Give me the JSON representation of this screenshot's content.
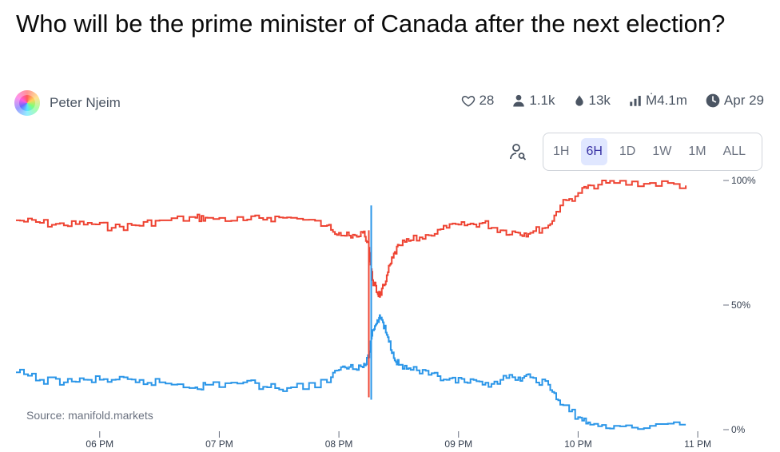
{
  "question": {
    "title": "Who will be the prime minister of Canada after the next election?"
  },
  "author": {
    "name": "Peter Njeim"
  },
  "stats": {
    "likes": "28",
    "traders": "1.1k",
    "liquidity": "13k",
    "volume": "Ṁ4.1m",
    "close_date": "Apr 29"
  },
  "time_range": {
    "options": [
      "1H",
      "6H",
      "1D",
      "1W",
      "1M",
      "ALL"
    ],
    "selected": "6H"
  },
  "source": "Source: manifold.markets",
  "colors": {
    "series_red": "#ee4332",
    "series_blue": "#2b96e8",
    "accent": "#3730a3"
  },
  "chart_data": {
    "type": "line",
    "x_ticks": [
      "06 PM",
      "07 PM",
      "08 PM",
      "09 PM",
      "10 PM",
      "11 PM"
    ],
    "y_ticks": [
      "100%",
      "50%",
      "0%"
    ],
    "ylim": [
      0,
      100
    ],
    "series": [
      {
        "color": "#ee4332",
        "values": [
          [
            17.3,
            84
          ],
          [
            17.5,
            83
          ],
          [
            17.7,
            82
          ],
          [
            17.9,
            83
          ],
          [
            18.1,
            81
          ],
          [
            18.3,
            82
          ],
          [
            18.5,
            84
          ],
          [
            18.8,
            85
          ],
          [
            18.9,
            85
          ],
          [
            19.2,
            84
          ],
          [
            19.4,
            85
          ],
          [
            19.6,
            85
          ],
          [
            19.9,
            82
          ],
          [
            20.0,
            79
          ],
          [
            20.1,
            77
          ],
          [
            20.2,
            79
          ],
          [
            20.25,
            73
          ],
          [
            20.28,
            60
          ],
          [
            20.32,
            55
          ],
          [
            20.35,
            54
          ],
          [
            20.4,
            62
          ],
          [
            20.45,
            69
          ],
          [
            20.5,
            74
          ],
          [
            20.6,
            76
          ],
          [
            20.75,
            78
          ],
          [
            20.9,
            81
          ],
          [
            21.05,
            82
          ],
          [
            21.2,
            83
          ],
          [
            21.35,
            80
          ],
          [
            21.5,
            79
          ],
          [
            21.6,
            79
          ],
          [
            21.75,
            82
          ],
          [
            21.85,
            90
          ],
          [
            22.0,
            95
          ],
          [
            22.1,
            98
          ],
          [
            22.3,
            99
          ],
          [
            22.6,
            99
          ],
          [
            22.9,
            98
          ]
        ]
      },
      {
        "color": "#2b96e8",
        "values": [
          [
            17.3,
            23
          ],
          [
            17.5,
            20
          ],
          [
            17.7,
            19
          ],
          [
            17.9,
            20
          ],
          [
            18.1,
            20
          ],
          [
            18.3,
            19
          ],
          [
            18.5,
            19
          ],
          [
            18.8,
            17
          ],
          [
            18.9,
            18
          ],
          [
            19.2,
            19
          ],
          [
            19.4,
            17
          ],
          [
            19.6,
            17
          ],
          [
            19.9,
            19
          ],
          [
            20.0,
            24
          ],
          [
            20.1,
            26
          ],
          [
            20.2,
            25
          ],
          [
            20.25,
            29
          ],
          [
            20.28,
            40
          ],
          [
            20.32,
            44
          ],
          [
            20.35,
            45
          ],
          [
            20.4,
            38
          ],
          [
            20.45,
            31
          ],
          [
            20.5,
            26
          ],
          [
            20.6,
            24
          ],
          [
            20.75,
            22
          ],
          [
            20.9,
            20
          ],
          [
            21.05,
            19
          ],
          [
            21.2,
            18
          ],
          [
            21.35,
            20
          ],
          [
            21.5,
            21
          ],
          [
            21.6,
            21
          ],
          [
            21.75,
            18
          ],
          [
            21.85,
            10
          ],
          [
            22.0,
            5
          ],
          [
            22.1,
            2
          ],
          [
            22.3,
            1.5
          ],
          [
            22.6,
            1.5
          ],
          [
            22.9,
            2
          ]
        ]
      }
    ]
  }
}
